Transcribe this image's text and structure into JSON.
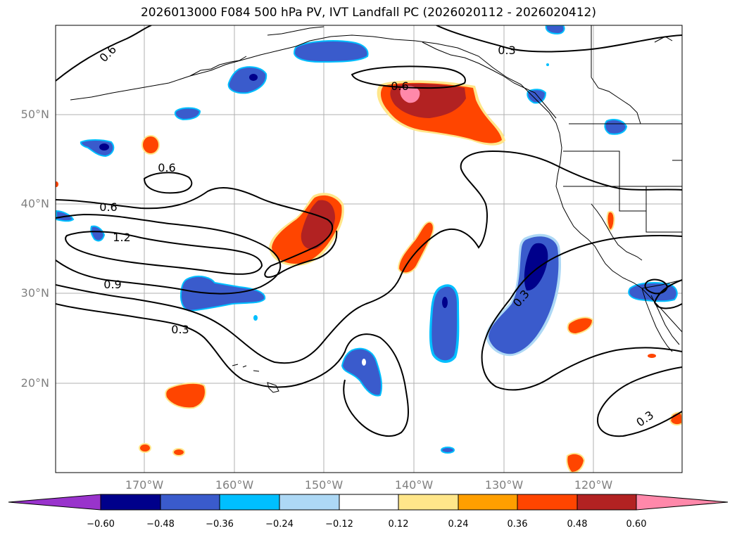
{
  "title": "2026013000 F084 500 hPa PV, IVT Landfall PC (2026020112 - 2026020412)",
  "lat_labels": [
    "50°N",
    "40°N",
    "30°N",
    "20°N"
  ],
  "lon_labels": [
    "170°W",
    "160°W",
    "150°W",
    "140°W",
    "130°W",
    "120°W"
  ],
  "contour_labels": [
    "0.6",
    "0.3",
    "0.6",
    "0.6",
    "0.6",
    "1.2",
    "0.9",
    "0.3",
    "0.3",
    "0.3"
  ],
  "colorbar": {
    "ticks": [
      "−0.60",
      "−0.48",
      "−0.36",
      "−0.24",
      "−0.12",
      "0.12",
      "0.24",
      "0.36",
      "0.48",
      "0.60"
    ],
    "colors": [
      "#9933cc",
      "#00008b",
      "#3a5bcc",
      "#00bfff",
      "#add8f5",
      "#ffffff",
      "#ffe68a",
      "#ff9f00",
      "#ff4500",
      "#b22222",
      "#ff88aa"
    ]
  },
  "fill_colors": {
    "dark_blue": "#00008b",
    "blue": "#3a5bcc",
    "cyan": "#00bfff",
    "light_blue": "#add8f5",
    "yellow": "#ffe68a",
    "orange": "#ff9f00",
    "red_orange": "#ff4500",
    "dark_red": "#b22222",
    "pink": "#ff88aa"
  }
}
